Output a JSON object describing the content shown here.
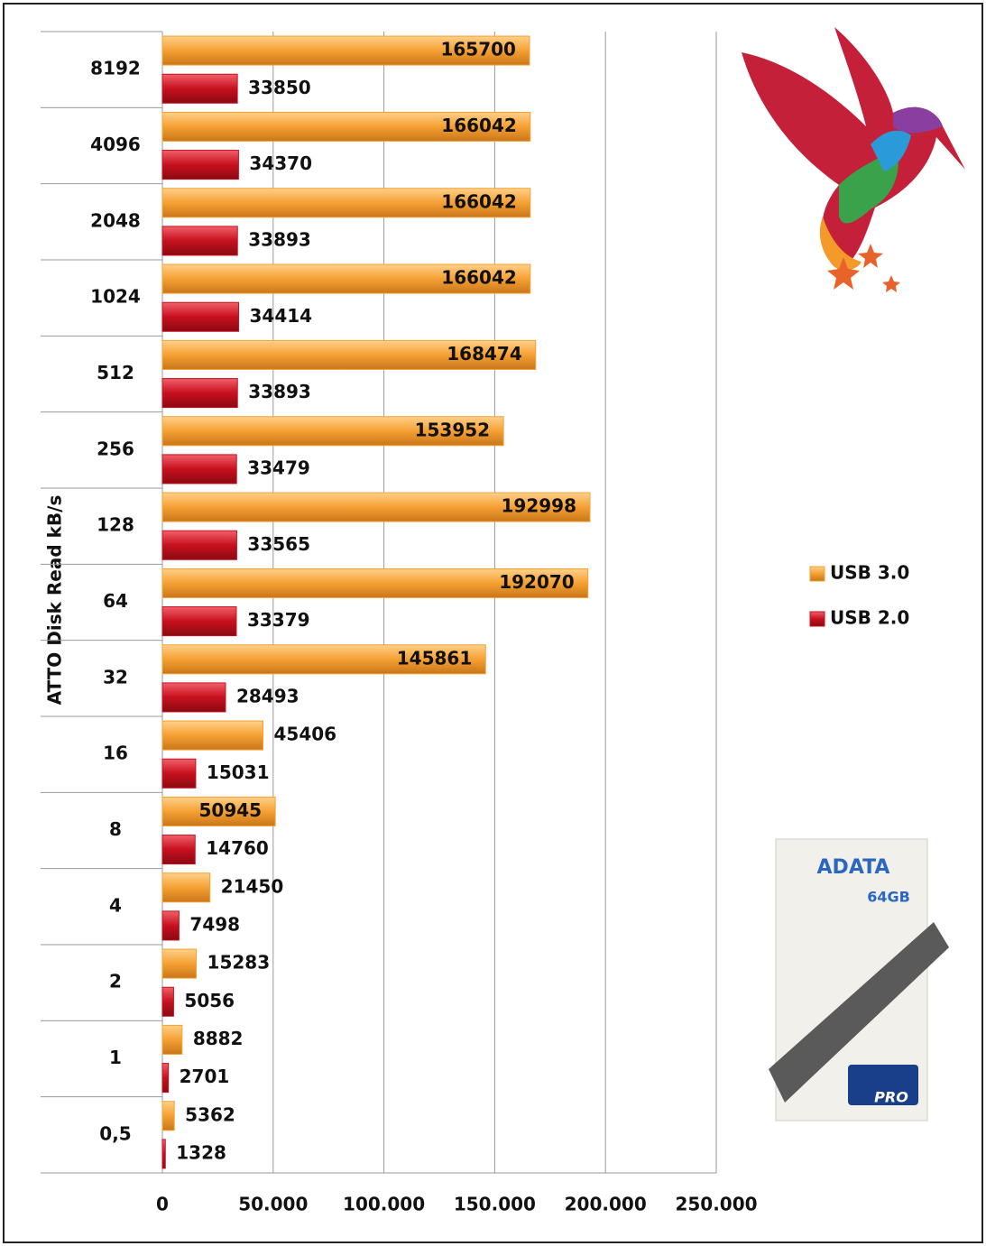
{
  "chart_data": {
    "type": "bar",
    "orientation": "horizontal",
    "y_axis_label": "ATTO Disk Read kB/s",
    "categories": [
      "8192",
      "4096",
      "2048",
      "1024",
      "512",
      "256",
      "128",
      "64",
      "32",
      "16",
      "8",
      "4",
      "2",
      "1",
      "0,5"
    ],
    "series": [
      {
        "name": "USB 3.0",
        "color": "#f5a033",
        "values": [
          165700,
          166042,
          166042,
          166042,
          168474,
          153952,
          192998,
          192070,
          145861,
          45406,
          50945,
          21450,
          15283,
          8882,
          5362
        ]
      },
      {
        "name": "USB 2.0",
        "color": "#c8101e",
        "values": [
          33850,
          34370,
          33893,
          34414,
          33893,
          33479,
          33565,
          33379,
          28493,
          15031,
          14760,
          7498,
          5056,
          2701,
          1328
        ]
      }
    ],
    "xlim": [
      0,
      250000
    ],
    "xticks": [
      0,
      {
        "value": 50000,
        "label": "50.000"
      },
      {
        "value": 100000,
        "label": "100.000"
      },
      {
        "value": 150000,
        "label": "150.000"
      },
      {
        "value": 200000,
        "label": "200.000"
      },
      {
        "value": 250000,
        "label": "250.000"
      }
    ],
    "grid": true,
    "legend": "right"
  },
  "product_image": {
    "brand": "ADATA",
    "capacity": "64GB",
    "badge": "PRO"
  }
}
